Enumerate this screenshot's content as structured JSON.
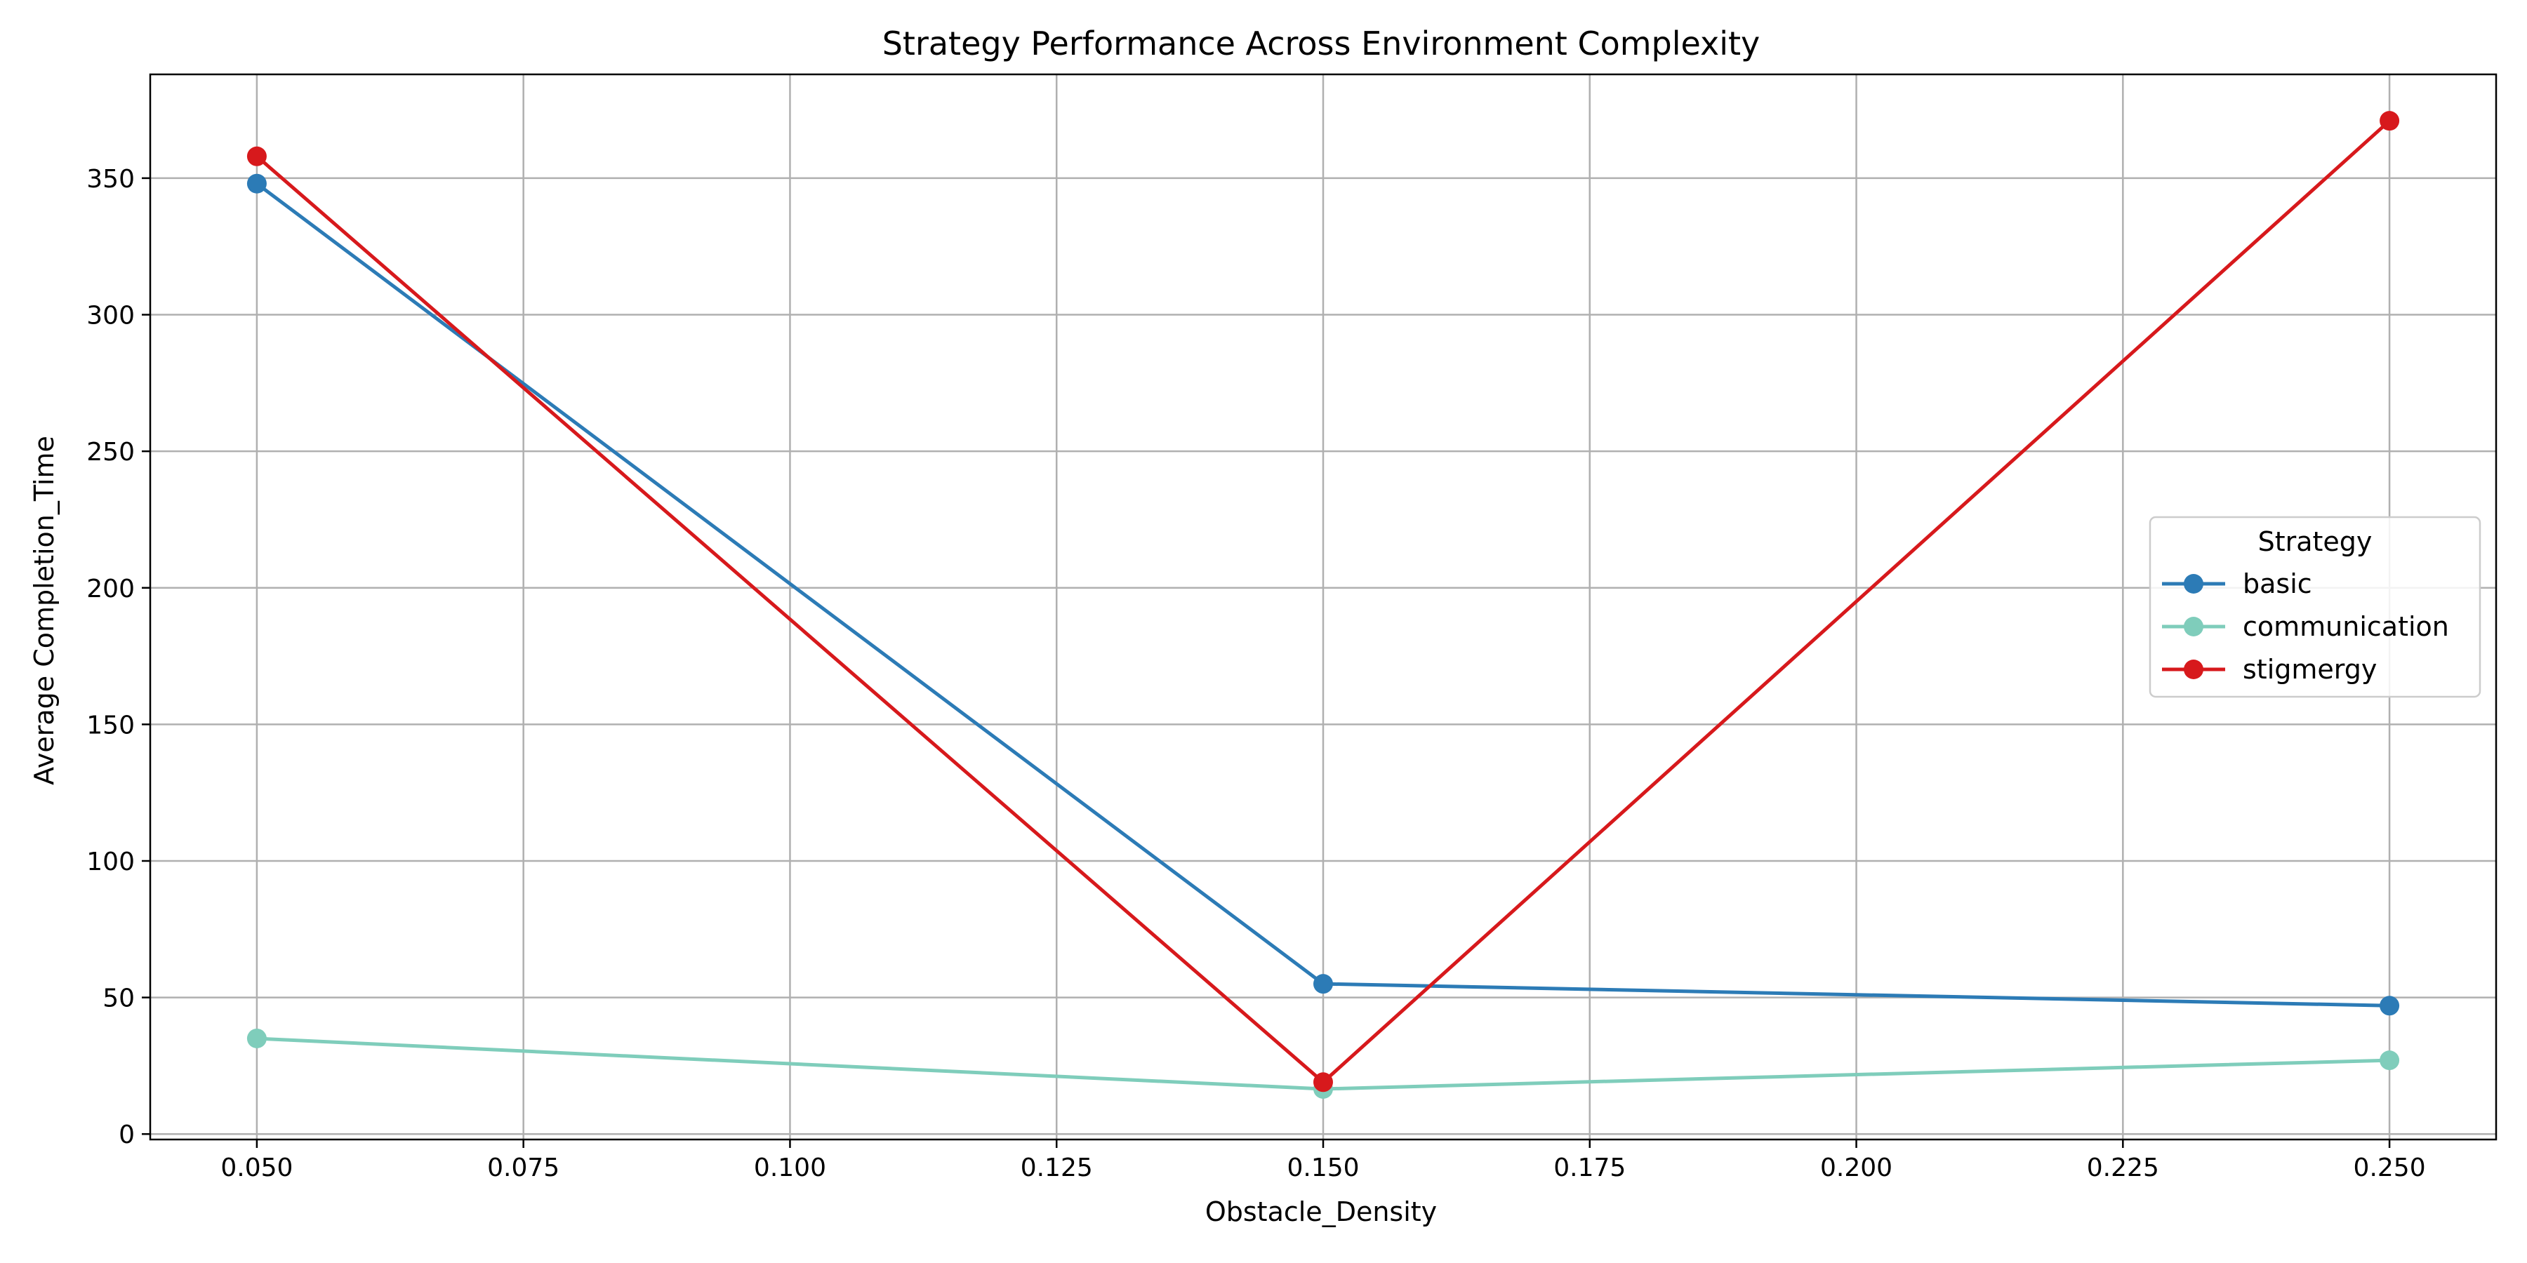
{
  "chart_data": {
    "type": "line",
    "title": "Strategy Performance Across Environment Complexity",
    "xlabel": "Obstacle_Density",
    "ylabel": "Average Completion_Time",
    "xlim": [
      0.04,
      0.26
    ],
    "ylim": [
      -2,
      388
    ],
    "xticks": [
      0.05,
      0.075,
      0.1,
      0.125,
      0.15,
      0.175,
      0.2,
      0.225,
      0.25
    ],
    "xtick_labels": [
      "0.050",
      "0.075",
      "0.100",
      "0.125",
      "0.150",
      "0.175",
      "0.200",
      "0.225",
      "0.250"
    ],
    "yticks": [
      0,
      50,
      100,
      150,
      200,
      250,
      300,
      350
    ],
    "ytick_labels": [
      "0",
      "50",
      "100",
      "150",
      "200",
      "250",
      "300",
      "350"
    ],
    "grid": true,
    "legend": {
      "title": "Strategy",
      "placement": "center-right"
    },
    "x": [
      0.05,
      0.15,
      0.25
    ],
    "series": [
      {
        "name": "basic",
        "color": "#2c7bb6",
        "values": [
          348,
          55,
          47
        ]
      },
      {
        "name": "communication",
        "color": "#7fcdbb",
        "values": [
          35,
          16.5,
          27
        ]
      },
      {
        "name": "stigmergy",
        "color": "#d7191c",
        "values": [
          358,
          19,
          371
        ]
      }
    ]
  }
}
